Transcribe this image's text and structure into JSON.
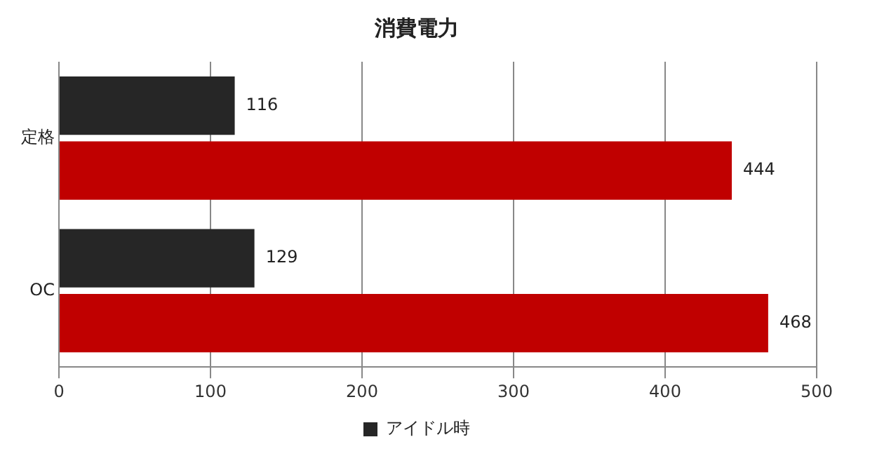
{
  "chart_data": {
    "type": "bar",
    "orientation": "horizontal",
    "title": "消費電力",
    "categories": [
      "定格",
      "OC"
    ],
    "series": [
      {
        "name": "アイドル時",
        "color": "#262626",
        "values": [
          116,
          129
        ]
      },
      {
        "color": "#c00000",
        "values": [
          444,
          468
        ]
      }
    ],
    "xlim": [
      0,
      500
    ],
    "xticks": [
      0,
      100,
      200,
      300,
      400,
      500
    ],
    "grid": "x",
    "legend": "bottom",
    "data_labels": true
  }
}
